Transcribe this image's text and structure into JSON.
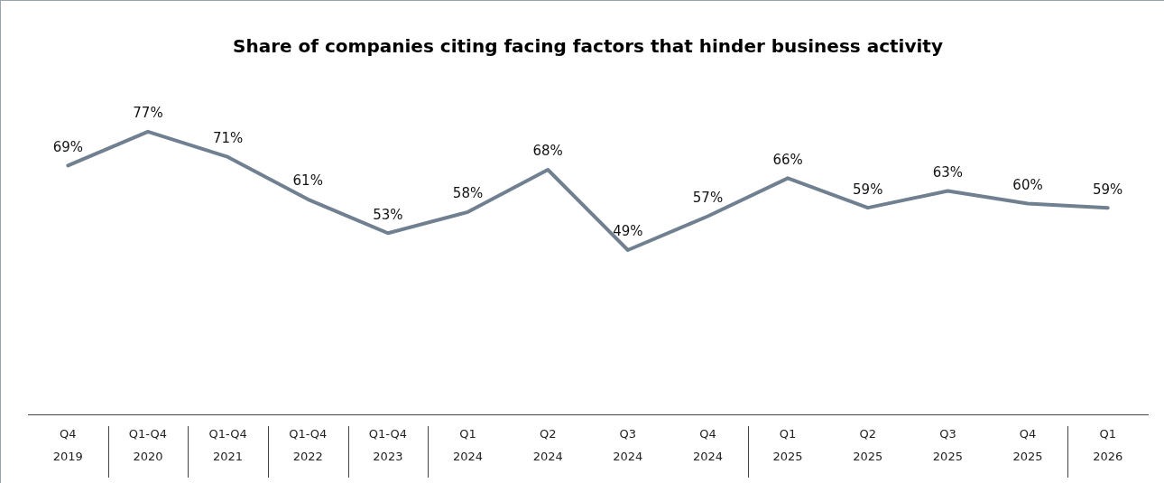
{
  "chart_data": {
    "type": "line",
    "title": "Share of companies citing facing factors that hinder business activity",
    "categories": [
      "Q4 2019",
      "Q1-Q4 2020",
      "Q1-Q4 2021",
      "Q1-Q4 2022",
      "Q1-Q4 2023",
      "Q1 2024",
      "Q2 2024",
      "Q3 2024",
      "Q4 2024",
      "Q1 2025",
      "Q2 2025",
      "Q3 2025",
      "Q4 2025",
      "Q1 2026"
    ],
    "series": [
      {
        "color": "#708090",
        "values": [
          69,
          77,
          71,
          61,
          53,
          58,
          68,
          49,
          57,
          66,
          59,
          63,
          60,
          59
        ],
        "value_labels": [
          "69%",
          "77%",
          "71%",
          "61%",
          "53%",
          "58%",
          "68%",
          "49%",
          "57%",
          "66%",
          "59%",
          "63%",
          "60%",
          "59%"
        ]
      }
    ],
    "tick_labels": "x",
    "grid": false,
    "legend": false,
    "marker": "none",
    "line_style": "solid"
  }
}
